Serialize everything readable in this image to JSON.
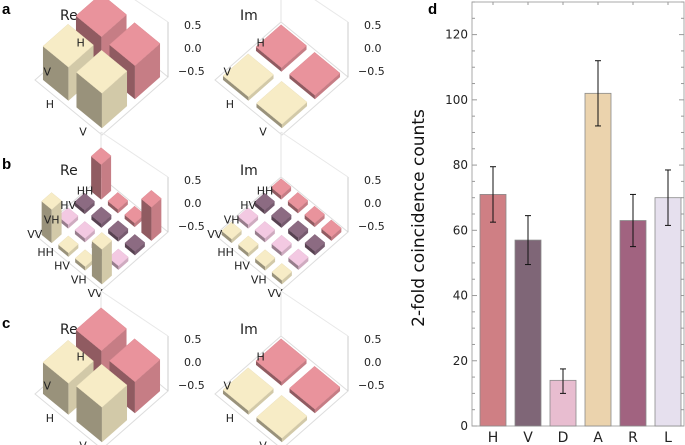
{
  "panel_letters": {
    "a": "a",
    "b": "b",
    "c": "c",
    "d": "d"
  },
  "chart_data": [
    {
      "type": "bar3d",
      "panel": "a",
      "plots": [
        {
          "title": "Re",
          "rows": [
            "H",
            "V"
          ],
          "cols": [
            "H",
            "V"
          ],
          "values": [
            [
              0.5,
              0.48
            ],
            [
              0.48,
              0.5
            ]
          ]
        },
        {
          "title": "Im",
          "rows": [
            "H",
            "V"
          ],
          "cols": [
            "H",
            "V"
          ],
          "values": [
            [
              0.0,
              0.02
            ],
            [
              -0.02,
              0.0
            ]
          ]
        }
      ],
      "zticks": [
        "0.5",
        "0.0",
        "−0.5"
      ],
      "zlim": [
        -0.5,
        0.5
      ],
      "row_colors": [
        "#e9939c",
        "#f7ecc6"
      ]
    },
    {
      "type": "bar3d",
      "panel": "b",
      "plots": [
        {
          "title": "Re",
          "rows": [
            "HH",
            "HV",
            "VH",
            "VV"
          ],
          "cols": [
            "HH",
            "HV",
            "VH",
            "VV"
          ],
          "values": [
            [
              0.5,
              0.02,
              0.02,
              0.48
            ],
            [
              0.02,
              0.02,
              0.02,
              0.02
            ],
            [
              0.02,
              0.02,
              0.02,
              0.02
            ],
            [
              0.48,
              0.02,
              0.02,
              0.5
            ]
          ]
        },
        {
          "title": "Im",
          "rows": [
            "HH",
            "HV",
            "VH",
            "VV"
          ],
          "cols": [
            "HH",
            "HV",
            "VH",
            "VV"
          ],
          "values": [
            [
              0.0,
              0.02,
              0.02,
              0.02
            ],
            [
              0.02,
              0.0,
              0.02,
              0.02
            ],
            [
              0.02,
              0.02,
              0.0,
              0.02
            ],
            [
              0.02,
              0.02,
              0.02,
              0.0
            ]
          ]
        }
      ],
      "zticks": [
        "0.5",
        "0.0",
        "−0.5"
      ],
      "zlim": [
        -0.5,
        0.5
      ],
      "row_colors": [
        "#e9939c",
        "#8c6b82",
        "#f3c9e2",
        "#f7ecc6"
      ]
    },
    {
      "type": "bar3d",
      "panel": "c",
      "plots": [
        {
          "title": "Re",
          "rows": [
            "H",
            "V"
          ],
          "cols": [
            "H",
            "V"
          ],
          "values": [
            [
              0.5,
              0.45
            ],
            [
              0.45,
              0.5
            ]
          ]
        },
        {
          "title": "Im",
          "rows": [
            "H",
            "V"
          ],
          "cols": [
            "H",
            "V"
          ],
          "values": [
            [
              0.0,
              0.03
            ],
            [
              -0.03,
              0.0
            ]
          ]
        }
      ],
      "zticks": [
        "0.5",
        "0.0",
        "−0.5"
      ],
      "zlim": [
        -0.5,
        0.5
      ],
      "row_colors": [
        "#e9939c",
        "#f7ecc6"
      ]
    },
    {
      "type": "bar",
      "panel": "d",
      "categories": [
        "H",
        "V",
        "D",
        "A",
        "R",
        "L"
      ],
      "values": [
        71,
        57,
        14,
        102,
        63,
        70
      ],
      "error_low": [
        62.5,
        49.5,
        10,
        92,
        55,
        61.5
      ],
      "error_high": [
        79.5,
        64.5,
        17.5,
        112,
        71,
        78.5
      ],
      "colors": [
        "#cf7f84",
        "#7f6677",
        "#e8bdd0",
        "#ebd3ad",
        "#a16380",
        "#e6e0ee"
      ],
      "ylabel": "2-fold coincidence counts",
      "xlabel": "",
      "ylim": [
        0,
        130
      ],
      "yticks": [
        "0",
        "20",
        "40",
        "60",
        "80",
        "100",
        "120"
      ]
    }
  ]
}
